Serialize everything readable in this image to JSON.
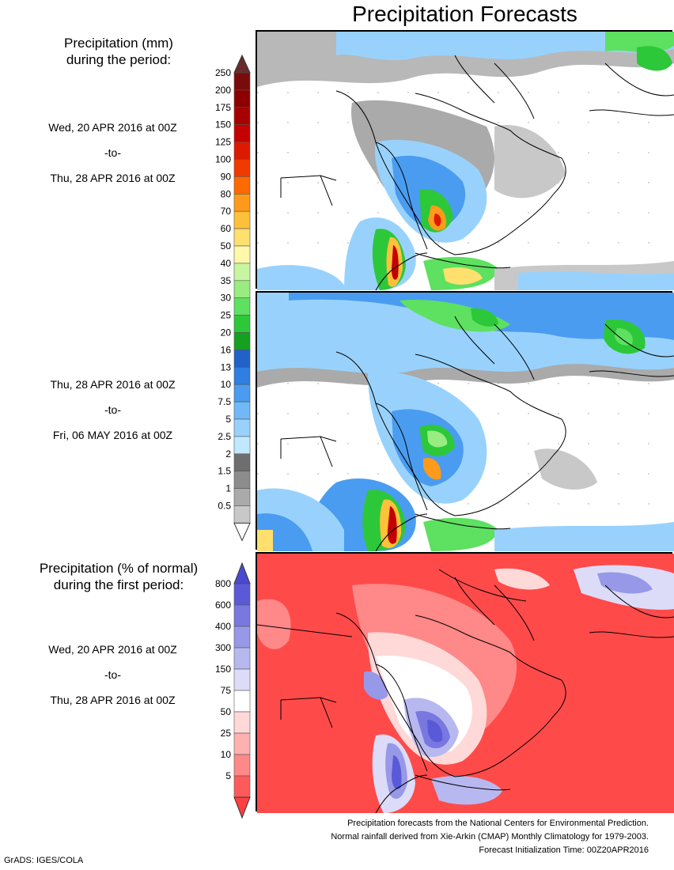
{
  "title": "Precipitation Forecasts",
  "section1": {
    "heading_line1": "Precipitation (mm)",
    "heading_line2": "during the period:",
    "period_from": "Wed, 20 APR 2016 at 00Z",
    "period_to_word": "-to-",
    "period_until": "Thu, 28 APR 2016 at 00Z"
  },
  "section2": {
    "period_from": "Thu, 28 APR 2016 at 00Z",
    "period_to_word": "-to-",
    "period_until": "Fri, 06 MAY 2016 at 00Z"
  },
  "section3": {
    "heading_line1": "Precipitation (% of normal)",
    "heading_line2": "during the first period:",
    "period_from": "Wed, 20 APR 2016 at 00Z",
    "period_to_word": "-to-",
    "period_until": "Thu, 28 APR 2016 at 00Z"
  },
  "precip_scale": {
    "ticks": [
      "250",
      "200",
      "175",
      "150",
      "125",
      "100",
      "90",
      "80",
      "70",
      "60",
      "50",
      "40",
      "35",
      "30",
      "25",
      "20",
      "16",
      "13",
      "10",
      "7.5",
      "5",
      "2.5",
      "2",
      "1.5",
      "1",
      "0.5"
    ],
    "colors": [
      "#7a0b0b",
      "#8e0000",
      "#a80000",
      "#c40000",
      "#dd1a00",
      "#f03a00",
      "#ff6a00",
      "#ff9a1a",
      "#ffc03a",
      "#ffe06e",
      "#fff8a8",
      "#c8f5a0",
      "#98ec80",
      "#5ee060",
      "#2cc83a",
      "#15a020",
      "#2062c8",
      "#2f7ee0",
      "#4a9cf0",
      "#70b8f8",
      "#98d2fc",
      "#c0e8ff",
      "#6e6e6e",
      "#8c8c8c",
      "#aaaaaa",
      "#c8c8c8"
    ],
    "top_arrow_color": "#6b2b2b"
  },
  "percent_scale": {
    "ticks": [
      "800",
      "600",
      "400",
      "300",
      "150",
      "75",
      "50",
      "25",
      "10",
      "5"
    ],
    "colors": [
      "#5a5ad8",
      "#7878e0",
      "#9898e8",
      "#b8b8f0",
      "#dcdcf8",
      "#ffffff",
      "#ffd8d8",
      "#ffb0b0",
      "#ff8888",
      "#ff5a5a"
    ],
    "top_arrow_color": "#4a4ad0",
    "bottom_arrow_color": "#ff4040"
  },
  "footer": {
    "line1": "Precipitation forecasts from the National Centers for Environmental Prediction.",
    "line2": "Normal rainfall derived from Xie-Arkin (CMAP) Monthly Climatology for 1979-2003.",
    "line3": "Forecast Initialization Time: 00Z20APR2016"
  },
  "credit": "GrADS: IGES/COLA"
}
